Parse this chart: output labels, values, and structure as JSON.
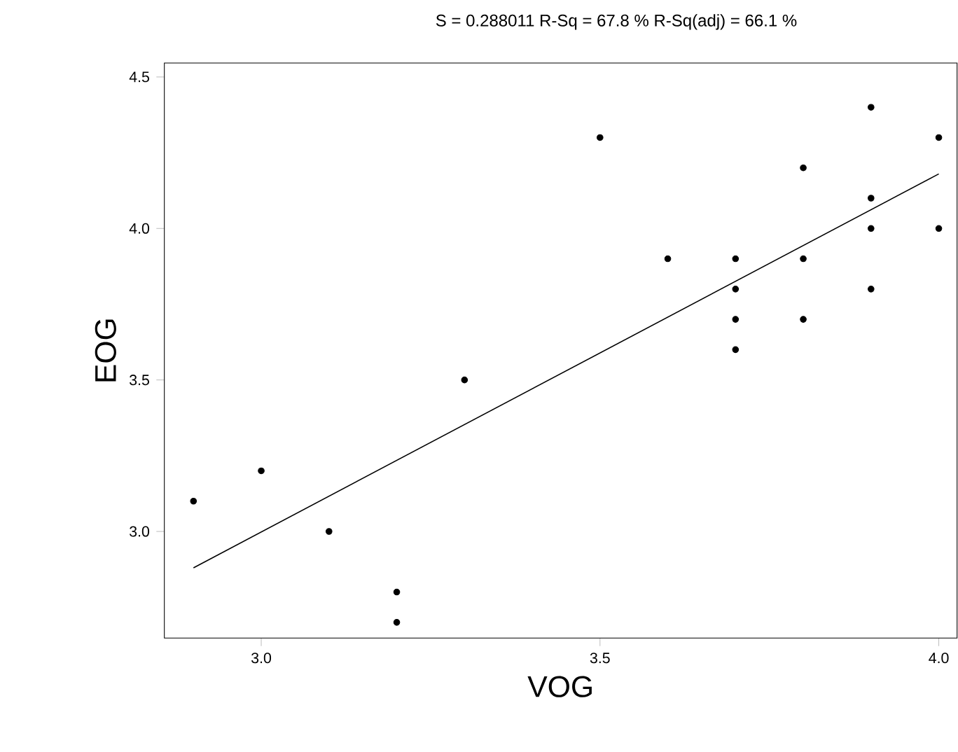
{
  "chart_data": {
    "type": "scatter",
    "title": "S = 0.288011      R-Sq = 67.8 %      R-Sq(adj) = 66.1 %",
    "xlabel": "VOG",
    "ylabel": "EOG",
    "series": [
      {
        "color": "#000000",
        "marker": "circle",
        "x": [
          2.9,
          3.0,
          3.1,
          3.2,
          3.2,
          3.3,
          3.5,
          3.6,
          3.7,
          3.7,
          3.7,
          3.7,
          3.8,
          3.8,
          3.8,
          3.9,
          3.9,
          3.9,
          3.9,
          4.0,
          4.0
        ],
        "values": [
          3.1,
          3.2,
          3.0,
          2.8,
          2.7,
          3.5,
          4.3,
          3.9,
          3.9,
          3.8,
          3.7,
          3.6,
          4.2,
          3.9,
          3.7,
          4.4,
          4.1,
          4.0,
          3.8,
          4.3,
          4.0
        ]
      },
      {
        "type": "line",
        "color": "#000000",
        "marker": "none",
        "line_style": "solid",
        "x": [
          2.9,
          4.0
        ],
        "values": [
          2.88,
          4.18
        ]
      }
    ],
    "xlim": [
      2.857,
      4.027
    ],
    "ylim": [
      2.648,
      4.546
    ],
    "xticks": [
      {
        "value": 3.0,
        "label": "3.0"
      },
      {
        "value": 3.5,
        "label": "3.5"
      },
      {
        "value": 4.0,
        "label": "4.0"
      }
    ],
    "yticks": [
      {
        "value": 3.0,
        "label": "3.0"
      },
      {
        "value": 3.5,
        "label": "3.5"
      },
      {
        "value": 4.0,
        "label": "4.0"
      },
      {
        "value": 4.5,
        "label": "4.5"
      }
    ],
    "grid": false
  }
}
